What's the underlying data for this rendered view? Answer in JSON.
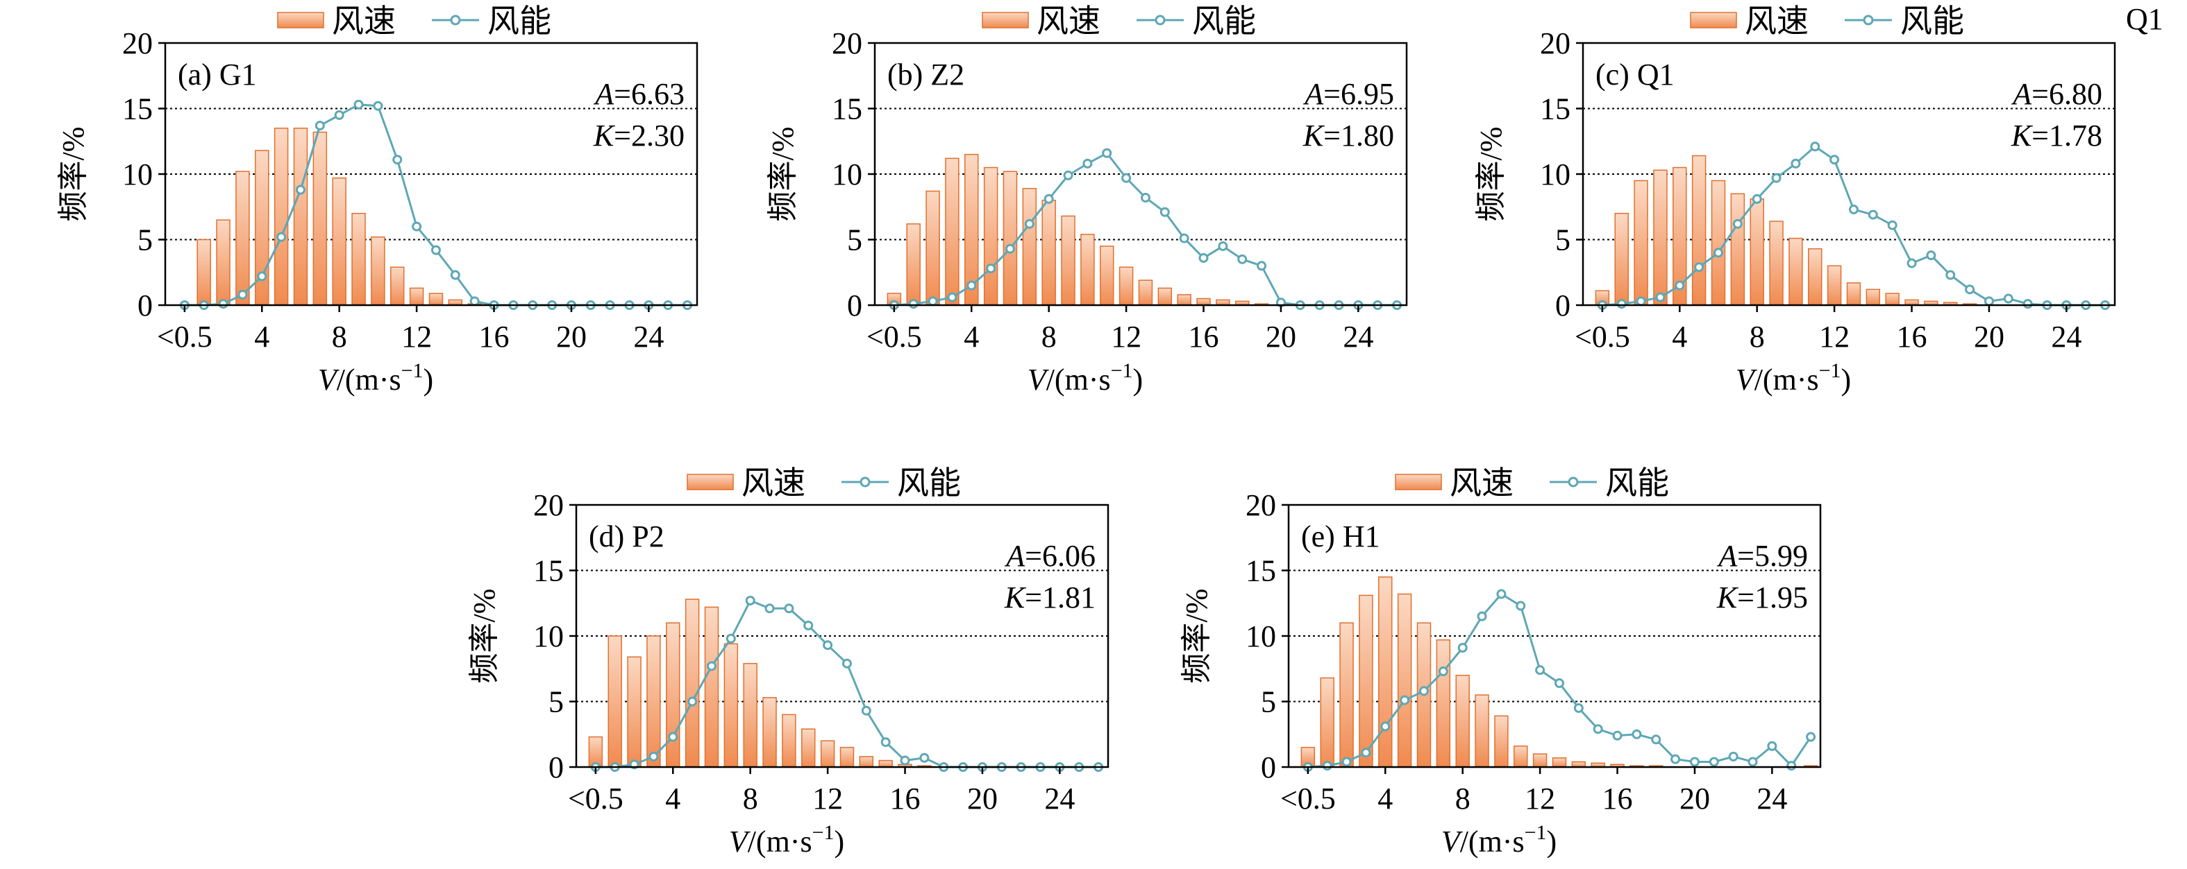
{
  "legend": {
    "bar_label": "风速",
    "line_label": "风能"
  },
  "stray_label": "Q1",
  "axis": {
    "ylabel": "频率/%",
    "xlabel_prefix": "V",
    "xlabel_rest": "/(m·s",
    "xlabel_exp": "−1",
    "xlabel_close": ")"
  },
  "colors": {
    "bar_fill_top": "#fbd9c4",
    "bar_fill_bottom": "#f08a4f",
    "bar_stroke": "#e0702f",
    "line": "#5ea7b5",
    "marker_fill": "#ffffff",
    "grid": "#000000"
  },
  "chart_data": [
    {
      "type": "bar",
      "panel_label": "(a) G1",
      "A_label": "A",
      "A_value": "=6.63",
      "K_label": "K",
      "K_value": "=2.30",
      "ylim": [
        0,
        20
      ],
      "yticks": [
        "0",
        "5",
        "10",
        "15",
        "20"
      ],
      "xlim": [
        -1,
        26.5
      ],
      "xticks": [
        {
          "x": 0,
          "label": "<0.5"
        },
        {
          "x": 4,
          "label": "4"
        },
        {
          "x": 8,
          "label": "8"
        },
        {
          "x": 12,
          "label": "12"
        },
        {
          "x": 16,
          "label": "16"
        },
        {
          "x": 20,
          "label": "20"
        },
        {
          "x": 24,
          "label": "24"
        }
      ],
      "x": [
        0,
        1,
        2,
        3,
        4,
        5,
        6,
        7,
        8,
        9,
        10,
        11,
        12,
        13,
        14,
        15,
        16,
        17,
        18,
        19,
        20,
        21,
        22,
        23,
        24,
        25,
        26
      ],
      "series": [
        {
          "values": [
            0,
            5.0,
            6.5,
            10.2,
            11.8,
            13.5,
            13.5,
            13.2,
            9.7,
            7.0,
            5.2,
            2.9,
            1.3,
            0.9,
            0.4,
            0.1,
            0,
            0,
            0,
            0,
            0,
            0,
            0,
            0,
            0,
            0,
            0
          ]
        },
        {
          "values": [
            0,
            0,
            0.1,
            0.8,
            2.2,
            5.2,
            8.8,
            13.7,
            14.5,
            15.3,
            15.2,
            11.1,
            6.0,
            4.2,
            2.3,
            0.3,
            0,
            0,
            0,
            0,
            0,
            0,
            0,
            0,
            0,
            0,
            0
          ]
        }
      ]
    },
    {
      "type": "bar",
      "panel_label": "(b) Z2",
      "A_label": "A",
      "A_value": "=6.95",
      "K_label": "K",
      "K_value": "=1.80",
      "ylim": [
        0,
        20
      ],
      "yticks": [
        "0",
        "5",
        "10",
        "15",
        "20"
      ],
      "xlim": [
        -1,
        26.5
      ],
      "xticks": [
        {
          "x": 0,
          "label": "<0.5"
        },
        {
          "x": 4,
          "label": "4"
        },
        {
          "x": 8,
          "label": "8"
        },
        {
          "x": 12,
          "label": "12"
        },
        {
          "x": 16,
          "label": "16"
        },
        {
          "x": 20,
          "label": "20"
        },
        {
          "x": 24,
          "label": "24"
        }
      ],
      "x": [
        0,
        1,
        2,
        3,
        4,
        5,
        6,
        7,
        8,
        9,
        10,
        11,
        12,
        13,
        14,
        15,
        16,
        17,
        18,
        19,
        20,
        21,
        22,
        23,
        24,
        25,
        26
      ],
      "series": [
        {
          "values": [
            0.9,
            6.2,
            8.7,
            11.2,
            11.5,
            10.5,
            10.2,
            8.9,
            8.0,
            6.8,
            5.4,
            4.5,
            2.9,
            1.9,
            1.3,
            0.8,
            0.5,
            0.4,
            0.3,
            0.1,
            0,
            0,
            0,
            0,
            0,
            0,
            0
          ]
        },
        {
          "values": [
            0,
            0.1,
            0.3,
            0.6,
            1.5,
            2.8,
            4.3,
            6.2,
            8.1,
            9.9,
            10.8,
            11.6,
            9.7,
            8.2,
            7.1,
            5.1,
            3.6,
            4.5,
            3.5,
            3.0,
            0.2,
            0,
            0,
            0,
            0,
            0,
            0
          ]
        }
      ]
    },
    {
      "type": "bar",
      "panel_label": "(c) Q1",
      "A_label": "A",
      "A_value": "=6.80",
      "K_label": "K",
      "K_value": "=1.78",
      "ylim": [
        0,
        20
      ],
      "yticks": [
        "0",
        "5",
        "10",
        "15",
        "20"
      ],
      "xlim": [
        -1,
        26.5
      ],
      "xticks": [
        {
          "x": 0,
          "label": "<0.5"
        },
        {
          "x": 4,
          "label": "4"
        },
        {
          "x": 8,
          "label": "8"
        },
        {
          "x": 12,
          "label": "12"
        },
        {
          "x": 16,
          "label": "16"
        },
        {
          "x": 20,
          "label": "20"
        },
        {
          "x": 24,
          "label": "24"
        }
      ],
      "x": [
        0,
        1,
        2,
        3,
        4,
        5,
        6,
        7,
        8,
        9,
        10,
        11,
        12,
        13,
        14,
        15,
        16,
        17,
        18,
        19,
        20,
        21,
        22,
        23,
        24,
        25,
        26
      ],
      "series": [
        {
          "values": [
            1.1,
            7.0,
            9.5,
            10.3,
            10.5,
            11.4,
            9.5,
            8.5,
            8.1,
            6.4,
            5.1,
            4.3,
            3.0,
            1.7,
            1.2,
            0.9,
            0.4,
            0.3,
            0.2,
            0.1,
            0,
            0,
            0,
            0,
            0,
            0,
            0
          ]
        },
        {
          "values": [
            0,
            0.1,
            0.3,
            0.6,
            1.5,
            2.9,
            4.0,
            6.2,
            8.1,
            9.7,
            10.8,
            12.1,
            11.1,
            7.3,
            6.9,
            6.1,
            3.2,
            3.8,
            2.3,
            1.2,
            0.3,
            0.5,
            0.1,
            0,
            0,
            0,
            0
          ]
        }
      ]
    },
    {
      "type": "bar",
      "panel_label": "(d) P2",
      "A_label": "A",
      "A_value": "=6.06",
      "K_label": "K",
      "K_value": "=1.81",
      "ylim": [
        0,
        20
      ],
      "yticks": [
        "0",
        "5",
        "10",
        "15",
        "20"
      ],
      "xlim": [
        -1,
        26.5
      ],
      "xticks": [
        {
          "x": 0,
          "label": "<0.5"
        },
        {
          "x": 4,
          "label": "4"
        },
        {
          "x": 8,
          "label": "8"
        },
        {
          "x": 12,
          "label": "12"
        },
        {
          "x": 16,
          "label": "16"
        },
        {
          "x": 20,
          "label": "20"
        },
        {
          "x": 24,
          "label": "24"
        }
      ],
      "x": [
        0,
        1,
        2,
        3,
        4,
        5,
        6,
        7,
        8,
        9,
        10,
        11,
        12,
        13,
        14,
        15,
        16,
        17,
        18,
        19,
        20,
        21,
        22,
        23,
        24,
        25,
        26
      ],
      "series": [
        {
          "values": [
            2.3,
            10.0,
            8.4,
            10.0,
            11.0,
            12.8,
            12.2,
            9.4,
            7.9,
            5.3,
            4.0,
            2.9,
            2.0,
            1.5,
            0.8,
            0.5,
            0.2,
            0.1,
            0,
            0,
            0,
            0,
            0,
            0,
            0,
            0,
            0
          ]
        },
        {
          "values": [
            0,
            0,
            0.2,
            0.8,
            2.3,
            5.0,
            7.7,
            9.8,
            12.7,
            12.1,
            12.1,
            10.8,
            9.3,
            7.9,
            4.3,
            1.9,
            0.5,
            0.7,
            0,
            0,
            0,
            0,
            0,
            0,
            0,
            0,
            0
          ]
        }
      ]
    },
    {
      "type": "bar",
      "panel_label": "(e) H1",
      "A_label": "A",
      "A_value": "=5.99",
      "K_label": "K",
      "K_value": "=1.95",
      "ylim": [
        0,
        20
      ],
      "yticks": [
        "0",
        "5",
        "10",
        "15",
        "20"
      ],
      "xlim": [
        -1,
        26.5
      ],
      "xticks": [
        {
          "x": 0,
          "label": "<0.5"
        },
        {
          "x": 4,
          "label": "4"
        },
        {
          "x": 8,
          "label": "8"
        },
        {
          "x": 12,
          "label": "12"
        },
        {
          "x": 16,
          "label": "16"
        },
        {
          "x": 20,
          "label": "20"
        },
        {
          "x": 24,
          "label": "24"
        }
      ],
      "x": [
        0,
        1,
        2,
        3,
        4,
        5,
        6,
        7,
        8,
        9,
        10,
        11,
        12,
        13,
        14,
        15,
        16,
        17,
        18,
        19,
        20,
        21,
        22,
        23,
        24,
        25,
        26
      ],
      "series": [
        {
          "values": [
            1.5,
            6.8,
            11.0,
            13.1,
            14.5,
            13.2,
            11.0,
            9.7,
            7.0,
            5.5,
            3.9,
            1.6,
            1.0,
            0.7,
            0.4,
            0.3,
            0.2,
            0.1,
            0.1,
            0,
            0,
            0,
            0,
            0,
            0,
            0,
            0.1
          ]
        },
        {
          "values": [
            0,
            0.1,
            0.4,
            1.1,
            3.1,
            5.1,
            5.8,
            7.3,
            9.1,
            11.5,
            13.2,
            12.3,
            7.4,
            6.4,
            4.5,
            2.9,
            2.4,
            2.5,
            2.1,
            0.6,
            0.4,
            0.4,
            0.8,
            0.4,
            1.6,
            0.1,
            2.3
          ]
        }
      ]
    }
  ]
}
